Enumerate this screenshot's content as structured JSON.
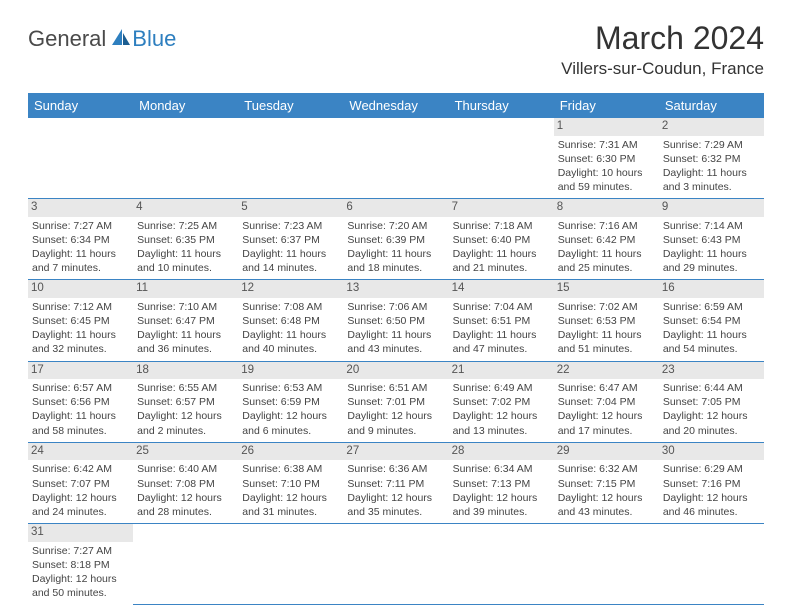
{
  "logo": {
    "text1": "General",
    "text2": "Blue"
  },
  "title": "March 2024",
  "location": "Villers-sur-Coudun, France",
  "colors": {
    "header_bg": "#3b84c4",
    "header_text": "#ffffff",
    "daynum_bg": "#e8e8e8",
    "row_border": "#3b84c4",
    "logo_blue": "#2e7fbf",
    "logo_gray": "#4a4a4a",
    "body_text": "#444444"
  },
  "weekdays": [
    "Sunday",
    "Monday",
    "Tuesday",
    "Wednesday",
    "Thursday",
    "Friday",
    "Saturday"
  ],
  "weeks": [
    [
      null,
      null,
      null,
      null,
      null,
      {
        "day": "1",
        "sunrise": "Sunrise: 7:31 AM",
        "sunset": "Sunset: 6:30 PM",
        "daylight": "Daylight: 10 hours and 59 minutes."
      },
      {
        "day": "2",
        "sunrise": "Sunrise: 7:29 AM",
        "sunset": "Sunset: 6:32 PM",
        "daylight": "Daylight: 11 hours and 3 minutes."
      }
    ],
    [
      {
        "day": "3",
        "sunrise": "Sunrise: 7:27 AM",
        "sunset": "Sunset: 6:34 PM",
        "daylight": "Daylight: 11 hours and 7 minutes."
      },
      {
        "day": "4",
        "sunrise": "Sunrise: 7:25 AM",
        "sunset": "Sunset: 6:35 PM",
        "daylight": "Daylight: 11 hours and 10 minutes."
      },
      {
        "day": "5",
        "sunrise": "Sunrise: 7:23 AM",
        "sunset": "Sunset: 6:37 PM",
        "daylight": "Daylight: 11 hours and 14 minutes."
      },
      {
        "day": "6",
        "sunrise": "Sunrise: 7:20 AM",
        "sunset": "Sunset: 6:39 PM",
        "daylight": "Daylight: 11 hours and 18 minutes."
      },
      {
        "day": "7",
        "sunrise": "Sunrise: 7:18 AM",
        "sunset": "Sunset: 6:40 PM",
        "daylight": "Daylight: 11 hours and 21 minutes."
      },
      {
        "day": "8",
        "sunrise": "Sunrise: 7:16 AM",
        "sunset": "Sunset: 6:42 PM",
        "daylight": "Daylight: 11 hours and 25 minutes."
      },
      {
        "day": "9",
        "sunrise": "Sunrise: 7:14 AM",
        "sunset": "Sunset: 6:43 PM",
        "daylight": "Daylight: 11 hours and 29 minutes."
      }
    ],
    [
      {
        "day": "10",
        "sunrise": "Sunrise: 7:12 AM",
        "sunset": "Sunset: 6:45 PM",
        "daylight": "Daylight: 11 hours and 32 minutes."
      },
      {
        "day": "11",
        "sunrise": "Sunrise: 7:10 AM",
        "sunset": "Sunset: 6:47 PM",
        "daylight": "Daylight: 11 hours and 36 minutes."
      },
      {
        "day": "12",
        "sunrise": "Sunrise: 7:08 AM",
        "sunset": "Sunset: 6:48 PM",
        "daylight": "Daylight: 11 hours and 40 minutes."
      },
      {
        "day": "13",
        "sunrise": "Sunrise: 7:06 AM",
        "sunset": "Sunset: 6:50 PM",
        "daylight": "Daylight: 11 hours and 43 minutes."
      },
      {
        "day": "14",
        "sunrise": "Sunrise: 7:04 AM",
        "sunset": "Sunset: 6:51 PM",
        "daylight": "Daylight: 11 hours and 47 minutes."
      },
      {
        "day": "15",
        "sunrise": "Sunrise: 7:02 AM",
        "sunset": "Sunset: 6:53 PM",
        "daylight": "Daylight: 11 hours and 51 minutes."
      },
      {
        "day": "16",
        "sunrise": "Sunrise: 6:59 AM",
        "sunset": "Sunset: 6:54 PM",
        "daylight": "Daylight: 11 hours and 54 minutes."
      }
    ],
    [
      {
        "day": "17",
        "sunrise": "Sunrise: 6:57 AM",
        "sunset": "Sunset: 6:56 PM",
        "daylight": "Daylight: 11 hours and 58 minutes."
      },
      {
        "day": "18",
        "sunrise": "Sunrise: 6:55 AM",
        "sunset": "Sunset: 6:57 PM",
        "daylight": "Daylight: 12 hours and 2 minutes."
      },
      {
        "day": "19",
        "sunrise": "Sunrise: 6:53 AM",
        "sunset": "Sunset: 6:59 PM",
        "daylight": "Daylight: 12 hours and 6 minutes."
      },
      {
        "day": "20",
        "sunrise": "Sunrise: 6:51 AM",
        "sunset": "Sunset: 7:01 PM",
        "daylight": "Daylight: 12 hours and 9 minutes."
      },
      {
        "day": "21",
        "sunrise": "Sunrise: 6:49 AM",
        "sunset": "Sunset: 7:02 PM",
        "daylight": "Daylight: 12 hours and 13 minutes."
      },
      {
        "day": "22",
        "sunrise": "Sunrise: 6:47 AM",
        "sunset": "Sunset: 7:04 PM",
        "daylight": "Daylight: 12 hours and 17 minutes."
      },
      {
        "day": "23",
        "sunrise": "Sunrise: 6:44 AM",
        "sunset": "Sunset: 7:05 PM",
        "daylight": "Daylight: 12 hours and 20 minutes."
      }
    ],
    [
      {
        "day": "24",
        "sunrise": "Sunrise: 6:42 AM",
        "sunset": "Sunset: 7:07 PM",
        "daylight": "Daylight: 12 hours and 24 minutes."
      },
      {
        "day": "25",
        "sunrise": "Sunrise: 6:40 AM",
        "sunset": "Sunset: 7:08 PM",
        "daylight": "Daylight: 12 hours and 28 minutes."
      },
      {
        "day": "26",
        "sunrise": "Sunrise: 6:38 AM",
        "sunset": "Sunset: 7:10 PM",
        "daylight": "Daylight: 12 hours and 31 minutes."
      },
      {
        "day": "27",
        "sunrise": "Sunrise: 6:36 AM",
        "sunset": "Sunset: 7:11 PM",
        "daylight": "Daylight: 12 hours and 35 minutes."
      },
      {
        "day": "28",
        "sunrise": "Sunrise: 6:34 AM",
        "sunset": "Sunset: 7:13 PM",
        "daylight": "Daylight: 12 hours and 39 minutes."
      },
      {
        "day": "29",
        "sunrise": "Sunrise: 6:32 AM",
        "sunset": "Sunset: 7:15 PM",
        "daylight": "Daylight: 12 hours and 43 minutes."
      },
      {
        "day": "30",
        "sunrise": "Sunrise: 6:29 AM",
        "sunset": "Sunset: 7:16 PM",
        "daylight": "Daylight: 12 hours and 46 minutes."
      }
    ],
    [
      {
        "day": "31",
        "sunrise": "Sunrise: 7:27 AM",
        "sunset": "Sunset: 8:18 PM",
        "daylight": "Daylight: 12 hours and 50 minutes."
      },
      null,
      null,
      null,
      null,
      null,
      null
    ]
  ]
}
